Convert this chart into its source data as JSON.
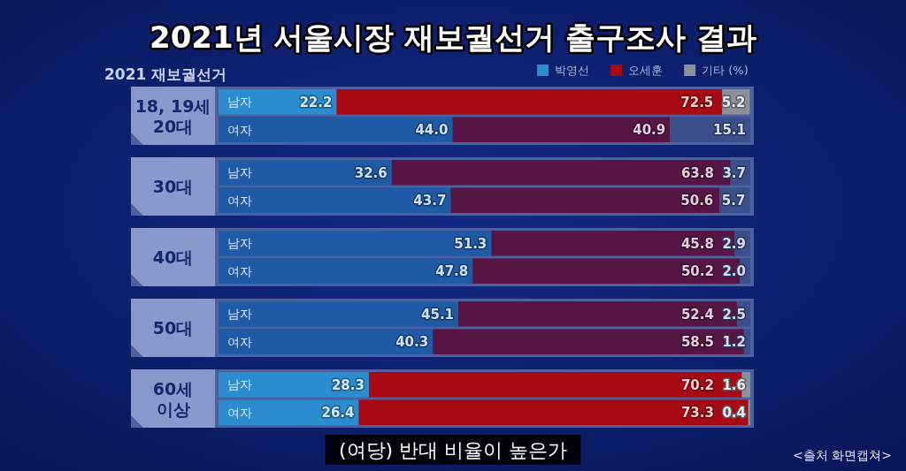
{
  "chart_data": [
    {
      "type": "other",
      "title": "2021년 서울시장 재보궐선거 출구조사 결과",
      "annotations": [
        "2021 재보궐선거",
        "(여당) 반대 비율이 높은가",
        "<출처 화면캡쳐>"
      ]
    },
    {
      "type": "bar",
      "orientation": "horizontal",
      "stacked": true,
      "tick_labels": "y",
      "legend": "top right",
      "title": "18, 19세\n20대",
      "categories": [
        "남자",
        "여자"
      ],
      "series": [
        {
          "name": "박영선",
          "color": "#2b8ccf",
          "colors": [
            "#2b8ccf",
            "#1e5aa6"
          ],
          "values": [
            22.2,
            44.0
          ],
          "value_labels": [
            "22.2",
            "44.0"
          ]
        },
        {
          "name": "오세훈",
          "color": "#a80a14",
          "colors": [
            "#a80a14",
            "#571545"
          ],
          "values": [
            72.5,
            40.9
          ],
          "value_labels": [
            "72.5",
            "40.9"
          ]
        },
        {
          "name": "기타 (%)",
          "color": "#8c9099",
          "colors": [
            "#8c9099",
            "#3b4f8c"
          ],
          "values": [
            5.2,
            15.1
          ],
          "value_labels": [
            "5.2",
            "15.1"
          ]
        }
      ]
    },
    {
      "type": "bar",
      "orientation": "horizontal",
      "stacked": true,
      "tick_labels": "y",
      "title": "30대",
      "categories": [
        "남자",
        "여자"
      ],
      "series": [
        {
          "colors": [
            "#1e5aa6",
            "#1e5aa6"
          ],
          "values": [
            32.6,
            43.7
          ],
          "value_labels": [
            "32.6",
            "43.7"
          ]
        },
        {
          "colors": [
            "#571545",
            "#571545"
          ],
          "values": [
            63.8,
            50.6
          ],
          "value_labels": [
            "63.8",
            "50.6"
          ]
        },
        {
          "colors": [
            "#3b4f8c",
            "#3b4f8c"
          ],
          "values": [
            3.7,
            5.7
          ],
          "value_labels": [
            "3.7",
            "5.7"
          ]
        }
      ]
    },
    {
      "type": "bar",
      "orientation": "horizontal",
      "stacked": true,
      "tick_labels": "y",
      "title": "40대",
      "categories": [
        "남자",
        "여자"
      ],
      "series": [
        {
          "colors": [
            "#1e5aa6",
            "#1e5aa6"
          ],
          "values": [
            51.3,
            47.8
          ],
          "value_labels": [
            "51.3",
            "47.8"
          ]
        },
        {
          "colors": [
            "#571545",
            "#571545"
          ],
          "values": [
            45.8,
            50.2
          ],
          "value_labels": [
            "45.8",
            "50.2"
          ]
        },
        {
          "colors": [
            "#3b4f8c",
            "#3b4f8c"
          ],
          "values": [
            2.9,
            2.0
          ],
          "value_labels": [
            "2.9",
            "2.0"
          ]
        }
      ]
    },
    {
      "type": "bar",
      "orientation": "horizontal",
      "stacked": true,
      "tick_labels": "y",
      "title": "50대",
      "categories": [
        "남자",
        "여자"
      ],
      "series": [
        {
          "colors": [
            "#1e5aa6",
            "#1e5aa6"
          ],
          "values": [
            45.1,
            40.3
          ],
          "value_labels": [
            "45.1",
            "40.3"
          ]
        },
        {
          "colors": [
            "#571545",
            "#571545"
          ],
          "values": [
            52.4,
            58.5
          ],
          "value_labels": [
            "52.4",
            "58.5"
          ]
        },
        {
          "colors": [
            "#3b4f8c",
            "#3b4f8c"
          ],
          "values": [
            2.5,
            1.2
          ],
          "value_labels": [
            "2.5",
            "1.2"
          ]
        }
      ]
    },
    {
      "type": "bar",
      "orientation": "horizontal",
      "stacked": true,
      "tick_labels": "y",
      "title": "60세\n이상",
      "categories": [
        "남자",
        "여자"
      ],
      "series": [
        {
          "colors": [
            "#2b8ccf",
            "#2b8ccf"
          ],
          "values": [
            28.3,
            26.4
          ],
          "value_labels": [
            "28.3",
            "26.4"
          ]
        },
        {
          "colors": [
            "#a80a14",
            "#a80a14"
          ],
          "values": [
            70.2,
            73.3
          ],
          "value_labels": [
            "70.2",
            "73.3"
          ]
        },
        {
          "colors": [
            "#8c9099",
            "#8c9099"
          ],
          "values": [
            1.6,
            0.4
          ],
          "value_labels": [
            "1.6",
            "0.4"
          ]
        }
      ]
    }
  ]
}
